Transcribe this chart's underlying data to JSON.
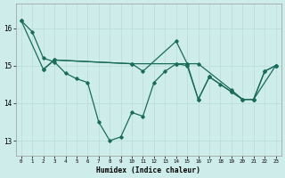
{
  "xlabel": "Humidex (Indice chaleur)",
  "background_color": "#cdecea",
  "grid_color": "#b8dcd9",
  "line_color": "#1a6b5a",
  "xlim": [
    -0.5,
    23.5
  ],
  "ylim": [
    12.6,
    16.65
  ],
  "yticks": [
    13,
    14,
    15,
    16
  ],
  "xticks": [
    0,
    1,
    2,
    3,
    4,
    5,
    6,
    7,
    8,
    9,
    10,
    11,
    12,
    13,
    14,
    15,
    16,
    17,
    18,
    19,
    20,
    21,
    22,
    23
  ],
  "series": [
    {
      "x": [
        0,
        1,
        2,
        3,
        4,
        5,
        6,
        7,
        8,
        9,
        10,
        11,
        12,
        13,
        14,
        15,
        16,
        17,
        18,
        19,
        20,
        21,
        22,
        23
      ],
      "y": [
        16.2,
        15.9,
        15.2,
        15.1,
        14.8,
        14.65,
        14.55,
        13.5,
        13.0,
        13.1,
        13.75,
        13.65,
        14.55,
        14.85,
        15.05,
        15.0,
        14.1,
        14.7,
        14.5,
        14.3,
        14.1,
        14.1,
        14.85,
        15.0
      ]
    },
    {
      "x": [
        0,
        2,
        3,
        10,
        14,
        15,
        16,
        19,
        20,
        21,
        23
      ],
      "y": [
        16.2,
        14.9,
        15.15,
        15.05,
        15.05,
        15.05,
        15.05,
        14.35,
        14.1,
        14.1,
        15.0
      ]
    },
    {
      "x": [
        2,
        3,
        10,
        11,
        14,
        15,
        16,
        17,
        19,
        20,
        21,
        22,
        23
      ],
      "y": [
        14.9,
        15.15,
        15.05,
        14.85,
        15.65,
        15.05,
        14.1,
        14.7,
        14.3,
        14.1,
        14.1,
        14.85,
        15.0
      ]
    }
  ]
}
